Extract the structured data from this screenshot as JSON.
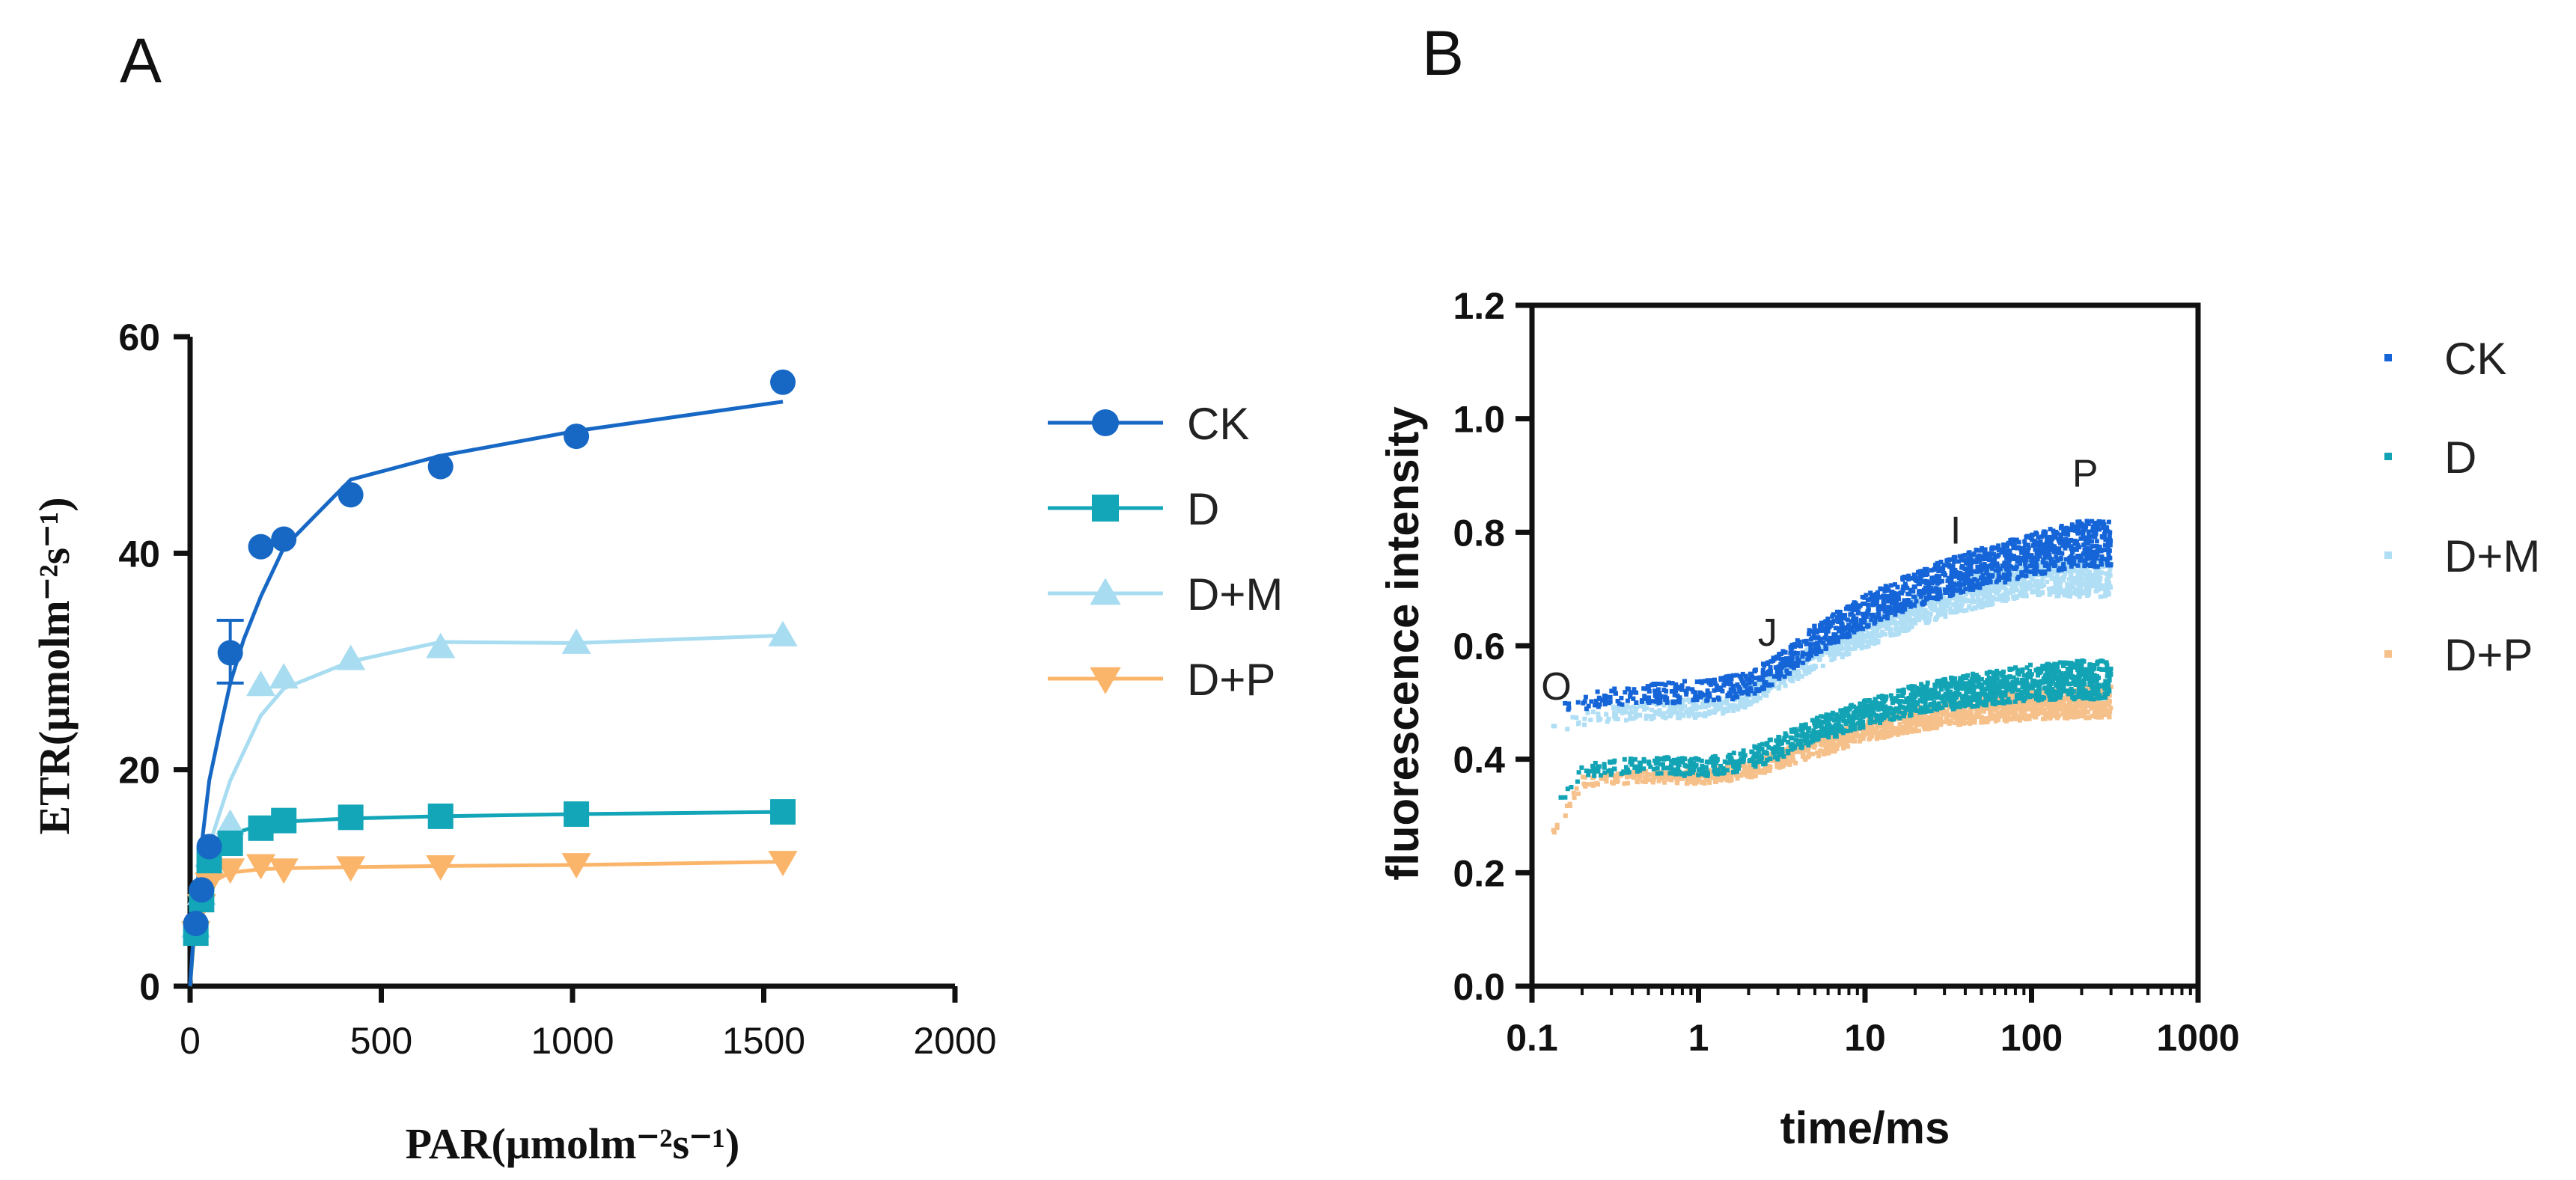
{
  "chart_data": [
    {
      "id": "A",
      "panel_label": "A",
      "type": "scatter",
      "xlabel": "PAR(μmolm⁻²s⁻¹)",
      "ylabel": "ETR(μmolm⁻²s⁻¹)",
      "xlim": [
        0,
        2000
      ],
      "ylim": [
        0,
        60
      ],
      "xticks": [
        "0",
        "500",
        "1000",
        "1500",
        "2000"
      ],
      "xtick_values": [
        0,
        500,
        1000,
        1500,
        2000
      ],
      "yticks": [
        "0",
        "20",
        "40",
        "60"
      ],
      "ytick_values": [
        0,
        20,
        40,
        60
      ],
      "series": [
        {
          "name": "CK",
          "color": "#1768c4",
          "marker": "circle",
          "x": [
            15,
            30,
            50,
            105,
            185,
            245,
            420,
            655,
            1010,
            1550
          ],
          "y": [
            5.8,
            8.9,
            12.9,
            30.8,
            40.6,
            41.3,
            45.4,
            48.0,
            50.8,
            55.8
          ],
          "errorbar": {
            "x": 105,
            "low": 28,
            "high": 33.8
          },
          "fit_x": [
            0,
            15,
            30,
            50,
            80,
            105,
            140,
            185,
            245,
            300,
            420,
            655,
            1010,
            1550
          ],
          "fit_y": [
            0,
            8,
            13,
            19,
            24,
            28,
            32,
            36,
            40.5,
            42.5,
            46.8,
            49,
            51.3,
            54
          ]
        },
        {
          "name": "D",
          "color": "#13a5b8",
          "marker": "square",
          "x": [
            15,
            30,
            50,
            105,
            185,
            245,
            420,
            655,
            1010,
            1550
          ],
          "y": [
            4.9,
            8.0,
            11.6,
            13.2,
            14.6,
            15.3,
            15.6,
            15.7,
            15.9,
            16.1
          ],
          "fit_x": [
            0,
            15,
            30,
            50,
            105,
            185,
            245,
            420,
            655,
            1010,
            1550
          ],
          "fit_y": [
            0,
            7,
            10,
            12.3,
            14.0,
            14.9,
            15.2,
            15.5,
            15.7,
            15.9,
            16.1
          ]
        },
        {
          "name": "D+M",
          "color": "#a8dcf0",
          "marker": "triangle-up",
          "x": [
            15,
            30,
            50,
            105,
            185,
            245,
            420,
            655,
            1010,
            1550
          ],
          "y": [
            5.5,
            8.5,
            12.0,
            15.0,
            27.8,
            28.5,
            30.2,
            31.3,
            31.7,
            32.4
          ],
          "fit_x": [
            0,
            15,
            30,
            50,
            105,
            185,
            245,
            420,
            655,
            1010,
            1550
          ],
          "fit_y": [
            0,
            7,
            10,
            13,
            19,
            25,
            27.5,
            30,
            31.8,
            31.7,
            32.4
          ]
        },
        {
          "name": "D+P",
          "color": "#fbb56a",
          "marker": "triangle-down",
          "x": [
            15,
            30,
            50,
            105,
            185,
            245,
            420,
            655,
            1010,
            1550
          ],
          "y": [
            5.0,
            7.5,
            9.5,
            10.8,
            11.2,
            10.8,
            11.0,
            11.1,
            11.3,
            11.5
          ],
          "fit_x": [
            0,
            15,
            30,
            50,
            105,
            185,
            245,
            420,
            655,
            1010,
            1550
          ],
          "fit_y": [
            0,
            6.5,
            8.5,
            9.5,
            10.5,
            10.8,
            10.9,
            11.0,
            11.1,
            11.2,
            11.5
          ]
        }
      ],
      "legend": [
        "CK",
        "D",
        "D+M",
        "D+P"
      ],
      "legend_position": "right"
    },
    {
      "id": "B",
      "panel_label": "B",
      "type": "scatter",
      "xscale": "log",
      "xlabel": "time/ms",
      "ylabel": "fluorescence intensity",
      "xlim": [
        0.1,
        1000
      ],
      "ylim": [
        0.0,
        1.2
      ],
      "xticks": [
        "0.1",
        "1",
        "10",
        "100",
        "1000"
      ],
      "xtick_values": [
        0.1,
        1,
        10,
        100,
        1000
      ],
      "yticks": [
        "0.0",
        "0.2",
        "0.4",
        "0.6",
        "0.8",
        "1.0",
        "1.2"
      ],
      "ytick_values": [
        0.0,
        0.2,
        0.4,
        0.6,
        0.8,
        1.0,
        1.2
      ],
      "series": [
        {
          "name": "CK",
          "color": "#1565d8",
          "x": [
            0.13,
            0.2,
            0.3,
            0.5,
            1,
            1.5,
            2,
            3,
            5,
            10,
            20,
            40,
            100,
            200,
            300
          ],
          "y": [
            0.48,
            0.5,
            0.51,
            0.515,
            0.52,
            0.525,
            0.53,
            0.56,
            0.61,
            0.66,
            0.7,
            0.73,
            0.76,
            0.78,
            0.78
          ],
          "band": 0.03
        },
        {
          "name": "D",
          "color": "#12a3b5",
          "x": [
            0.13,
            0.2,
            0.3,
            0.5,
            1,
            1.5,
            2,
            3,
            5,
            10,
            20,
            40,
            100,
            200,
            300
          ],
          "y": [
            0.3,
            0.38,
            0.385,
            0.39,
            0.385,
            0.39,
            0.4,
            0.42,
            0.45,
            0.48,
            0.505,
            0.52,
            0.535,
            0.54,
            0.54
          ],
          "band": 0.025
        },
        {
          "name": "D+M",
          "color": "#b0def5",
          "x": [
            0.13,
            0.2,
            0.3,
            0.5,
            1,
            1.5,
            2,
            3,
            5,
            10,
            20,
            40,
            100,
            200,
            300
          ],
          "y": [
            0.45,
            0.47,
            0.48,
            0.485,
            0.49,
            0.5,
            0.51,
            0.54,
            0.58,
            0.62,
            0.66,
            0.69,
            0.72,
            0.72,
            0.72
          ],
          "band": 0.025
        },
        {
          "name": "D+P",
          "color": "#f6c08a",
          "x": [
            0.13,
            0.2,
            0.3,
            0.5,
            1,
            1.5,
            2,
            3,
            5,
            10,
            20,
            40,
            100,
            200,
            300
          ],
          "y": [
            0.26,
            0.36,
            0.365,
            0.37,
            0.37,
            0.375,
            0.38,
            0.4,
            0.42,
            0.45,
            0.47,
            0.485,
            0.495,
            0.5,
            0.5
          ],
          "band": 0.02
        }
      ],
      "annotations": [
        {
          "text": "O",
          "x": 0.14,
          "y": 0.505
        },
        {
          "text": "J",
          "x": 2.6,
          "y": 0.6
        },
        {
          "text": "I",
          "x": 35,
          "y": 0.78
        },
        {
          "text": "P",
          "x": 210,
          "y": 0.88
        }
      ],
      "legend": [
        "CK",
        "D",
        "D+M",
        "D+P"
      ],
      "legend_position": "right"
    }
  ]
}
